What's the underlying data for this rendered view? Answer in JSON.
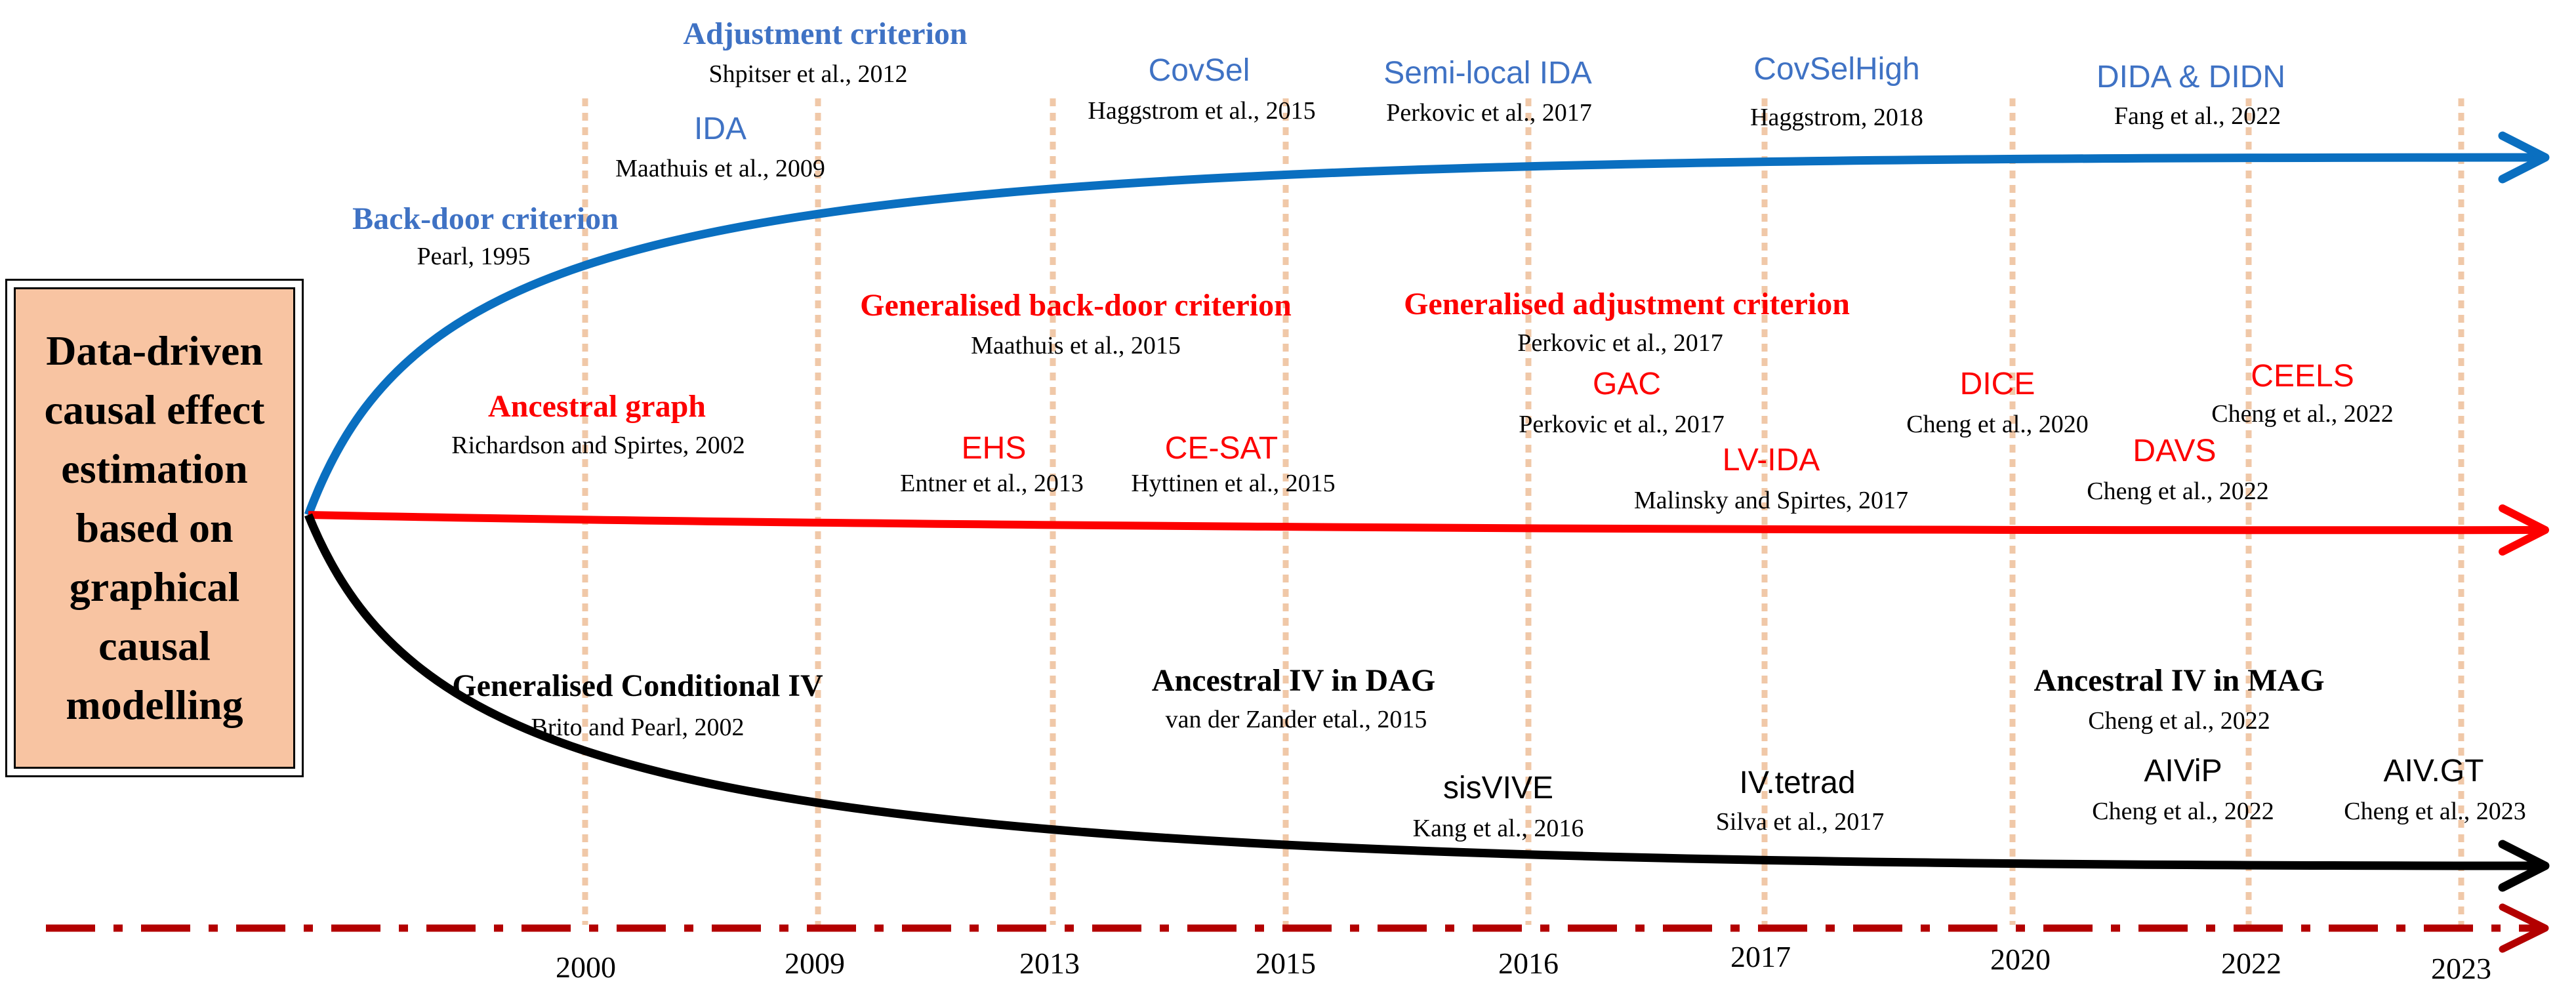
{
  "origin": {
    "lines": [
      "Data-driven",
      "causal effect",
      "estimation",
      "based on",
      "graphical",
      "causal",
      "modelling"
    ]
  },
  "colors": {
    "blue": "#3f72c4",
    "blue_arrow": "#0a6fc0",
    "red": "#fd0000",
    "black": "#000000",
    "timeline": "#b30000",
    "guides": "#f0c8a8",
    "box_fill": "#f8c4a2"
  },
  "timeline_years": [
    "2000",
    "2009",
    "2013",
    "2015",
    "2016",
    "2017",
    "2020",
    "2022",
    "2023"
  ],
  "blue_branch": [
    {
      "title": "Adjustment criterion",
      "citation": "Shpitser et al., 2012"
    },
    {
      "title": "IDA",
      "citation": "Maathuis et al., 2009"
    },
    {
      "title": "CovSel",
      "citation": "Haggstrom et al., 2015"
    },
    {
      "title": "Semi-local IDA",
      "citation": "Perkovic et al., 2017"
    },
    {
      "title": "CovSelHigh",
      "citation": "Haggstrom, 2018"
    },
    {
      "title": "DIDA & DIDN",
      "citation": "Fang et al., 2022"
    },
    {
      "title": "Back-door criterion",
      "citation": "Pearl, 1995"
    }
  ],
  "red_branch": [
    {
      "title": "Generalised back-door criterion",
      "citation": "Maathuis et al., 2015"
    },
    {
      "title": "Generalised adjustment criterion",
      "citation": "Perkovic et al., 2017"
    },
    {
      "title": "Ancestral graph",
      "citation": "Richardson and Spirtes, 2002"
    },
    {
      "title": "GAC",
      "citation": "Perkovic et al., 2017"
    },
    {
      "title": "DICE",
      "citation": "Cheng et al., 2020"
    },
    {
      "title": "CEELS",
      "citation": "Cheng et al., 2022"
    },
    {
      "title": "EHS",
      "citation": "Entner et al., 2013"
    },
    {
      "title": "CE-SAT",
      "citation": "Hyttinen et al., 2015"
    },
    {
      "title": "LV-IDA",
      "citation": "Malinsky and Spirtes, 2017"
    },
    {
      "title": "DAVS",
      "citation": "Cheng et al., 2022"
    }
  ],
  "black_branch": [
    {
      "title": "Generalised Conditional IV",
      "citation": "Brito and Pearl, 2002"
    },
    {
      "title": "Ancestral IV in DAG",
      "citation": "van der Zander etal., 2015"
    },
    {
      "title": "Ancestral IV in MAG",
      "citation": "Cheng et al., 2022"
    },
    {
      "title": "sisVIVE",
      "citation": "Kang et al., 2016"
    },
    {
      "title": "IV.tetrad",
      "citation": "Silva et al., 2017"
    },
    {
      "title": "AIViP",
      "citation": "Cheng et al., 2022"
    },
    {
      "title": "AIV.GT",
      "citation": "Cheng et al., 2023"
    }
  ]
}
